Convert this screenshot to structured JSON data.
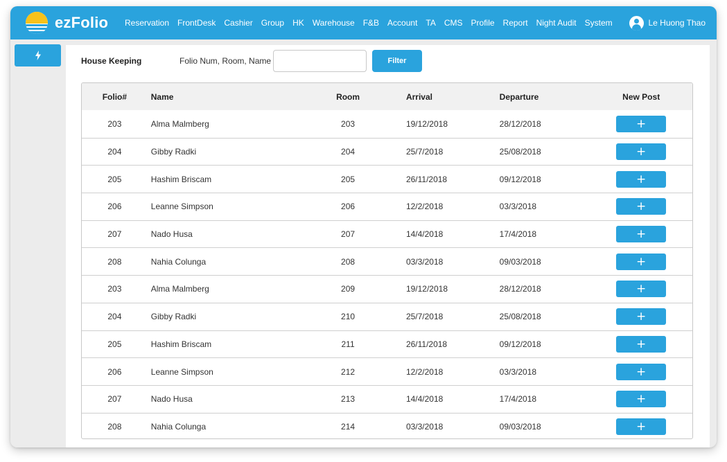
{
  "app": {
    "brand": "ezFolio"
  },
  "nav": {
    "items": [
      "Reservation",
      "FrontDesk",
      "Cashier",
      "Group",
      "HK",
      "Warehouse",
      "F&B",
      "Account",
      "TA",
      "CMS",
      "Profile",
      "Report",
      "Night Audit",
      "System"
    ]
  },
  "user": {
    "name": "Le Huong Thao",
    "icon": "user-circle-icon"
  },
  "sidebar": {
    "quick_icon": "bolt-icon"
  },
  "page": {
    "title": "House Keeping",
    "search_label": "Folio Num, Room, Name",
    "search_value": "",
    "filter_label": "Filter"
  },
  "table": {
    "headers": {
      "folio": "Folio#",
      "name": "Name",
      "room": "Room",
      "arrival": "Arrival",
      "departure": "Departure",
      "post": "New Post"
    },
    "add_label": "+",
    "rows": [
      {
        "folio": "203",
        "name": "Alma Malmberg",
        "room": "203",
        "arrival": "19/12/2018",
        "departure": "28/12/2018"
      },
      {
        "folio": "204",
        "name": "Gibby Radki",
        "room": "204",
        "arrival": "25/7/2018",
        "departure": "25/08/2018"
      },
      {
        "folio": "205",
        "name": "Hashim Briscam",
        "room": "205",
        "arrival": "26/11/2018",
        "departure": "09/12/2018"
      },
      {
        "folio": "206",
        "name": "Leanne Simpson",
        "room": "206",
        "arrival": "12/2/2018",
        "departure": "03/3/2018"
      },
      {
        "folio": "207",
        "name": "Nado Husa",
        "room": "207",
        "arrival": "14/4/2018",
        "departure": "17/4/2018"
      },
      {
        "folio": "208",
        "name": "Nahia Colunga",
        "room": "208",
        "arrival": "03/3/2018",
        "departure": "09/03/2018"
      },
      {
        "folio": "203",
        "name": "Alma Malmberg",
        "room": "209",
        "arrival": "19/12/2018",
        "departure": "28/12/2018"
      },
      {
        "folio": "204",
        "name": "Gibby Radki",
        "room": "210",
        "arrival": "25/7/2018",
        "departure": "25/08/2018"
      },
      {
        "folio": "205",
        "name": "Hashim Briscam",
        "room": "211",
        "arrival": "26/11/2018",
        "departure": "09/12/2018"
      },
      {
        "folio": "206",
        "name": "Leanne Simpson",
        "room": "212",
        "arrival": "12/2/2018",
        "departure": "03/3/2018"
      },
      {
        "folio": "207",
        "name": "Nado Husa",
        "room": "213",
        "arrival": "14/4/2018",
        "departure": "17/4/2018"
      },
      {
        "folio": "208",
        "name": "Nahia Colunga",
        "room": "214",
        "arrival": "03/3/2018",
        "departure": "09/03/2018"
      }
    ]
  },
  "colors": {
    "accent": "#2aa3dd",
    "sun": "#f7c21b"
  }
}
